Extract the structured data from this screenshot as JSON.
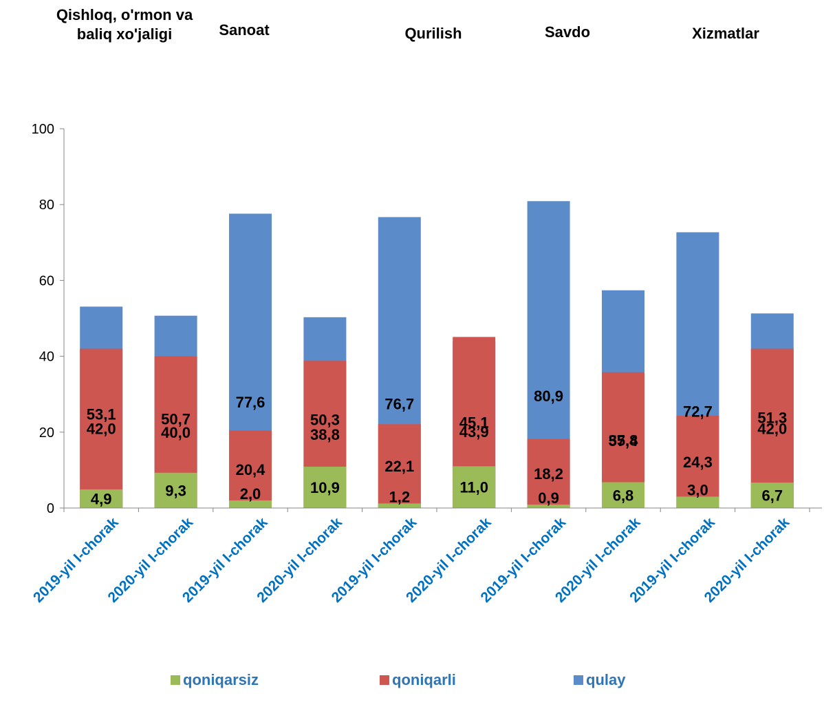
{
  "chart_data": {
    "type": "bar",
    "stacked": true,
    "groups": [
      {
        "label": "Qishloq, o'rmon va\nbaliq xo'jaligi",
        "bars": [
          0,
          1
        ]
      },
      {
        "label": "Sanoat",
        "bars": [
          2,
          3
        ]
      },
      {
        "label": "Qurilish",
        "bars": [
          4,
          5
        ]
      },
      {
        "label": "Savdo",
        "bars": [
          6,
          7
        ]
      },
      {
        "label": "Xizmatlar",
        "bars": [
          8,
          9
        ]
      }
    ],
    "categories": [
      "2019-yil I-chorak",
      "2020-yil I-chorak",
      "2019-yil I-chorak",
      "2020-yil I-chorak",
      "2019-yil I-chorak",
      "2020-yil I-chorak",
      "2019-yil I-chorak",
      "2020-yil I-chorak",
      "2019-yil I-chorak",
      "2020-yil I-chorak"
    ],
    "series": [
      {
        "name": "qulay",
        "color": "#5b8bc9",
        "values": [
          53.1,
          50.7,
          77.6,
          50.3,
          76.7,
          43.9,
          80.9,
          57.4,
          72.7,
          51.3
        ],
        "labels": [
          "53,1",
          "50,7",
          "77,6",
          "50,3",
          "76,7",
          "43,9",
          "80,9",
          "57,4",
          "72,7",
          "51,3"
        ]
      },
      {
        "name": "qoniqarli",
        "color": "#cd5650",
        "values": [
          42.0,
          40.0,
          20.4,
          38.8,
          22.1,
          45.1,
          18.2,
          35.8,
          24.3,
          42.0
        ],
        "labels": [
          "42,0",
          "40,0",
          "20,4",
          "38,8",
          "22,1",
          "45,1",
          "18,2",
          "35,8",
          "24,3",
          "42,0"
        ]
      },
      {
        "name": "qoniqarsiz",
        "color": "#9bbb59",
        "values": [
          4.9,
          9.3,
          2.0,
          10.9,
          1.2,
          11.0,
          0.9,
          6.8,
          3.0,
          6.7
        ],
        "labels": [
          "4,9",
          "9,3",
          "2,0",
          "10,9",
          "1,2",
          "11,0",
          "0,9",
          "6,8",
          "3,0",
          "6,7"
        ]
      }
    ],
    "yticks": [
      0,
      20,
      40,
      60,
      80,
      100
    ],
    "ylim": [
      0,
      100
    ],
    "xlabel_color": "#0070c0",
    "legend": {
      "position": "bottom",
      "order": [
        "qoniqarsiz",
        "qoniqarli",
        "qulay"
      ]
    },
    "grid": false
  }
}
